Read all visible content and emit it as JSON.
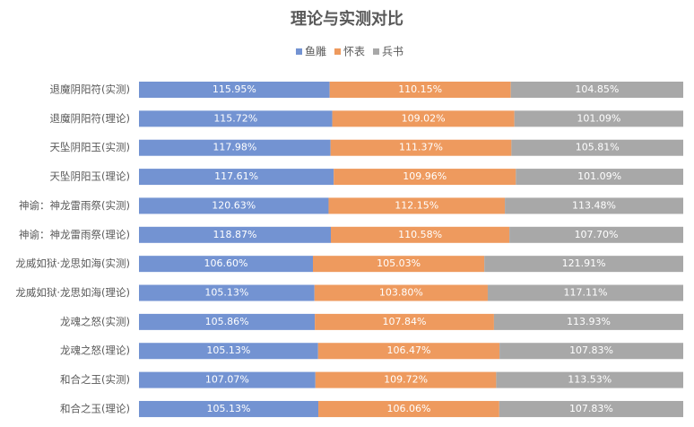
{
  "chart_data": {
    "type": "stacked_bar_100_horizontal",
    "title": "理论与实测对比",
    "categories": [
      "退魔阴阳符(实测)",
      "退魔阴阳符(理论)",
      "天坠阴阳玉(实测)",
      "天坠阴阳玉(理论)",
      "神谕：神龙雷雨祭(实测)",
      "神谕：神龙雷雨祭(理论)",
      "龙威如狱·龙思如海(实测)",
      "龙威如狱·龙思如海(理论)",
      "龙魂之怒(实测)",
      "龙魂之怒(理论)",
      "和合之玉(实测)",
      "和合之玉(理论)"
    ],
    "series": [
      {
        "name": "鱼雕",
        "color": "#7393d2",
        "values": [
          115.95,
          115.72,
          117.98,
          117.61,
          120.63,
          118.87,
          106.6,
          105.13,
          105.86,
          105.13,
          107.07,
          105.13
        ],
        "value_labels": [
          "115.95%",
          "115.72%",
          "117.98%",
          "117.61%",
          "120.63%",
          "118.87%",
          "106.60%",
          "105.13%",
          "105.86%",
          "105.13%",
          "107.07%",
          "105.13%"
        ]
      },
      {
        "name": "怀表",
        "color": "#ee9a5e",
        "values": [
          110.15,
          109.02,
          111.37,
          109.96,
          112.15,
          110.58,
          105.03,
          103.8,
          107.84,
          106.47,
          109.72,
          106.06
        ],
        "value_labels": [
          "110.15%",
          "109.02%",
          "111.37%",
          "109.96%",
          "112.15%",
          "110.58%",
          "105.03%",
          "103.80%",
          "107.84%",
          "106.47%",
          "109.72%",
          "106.06%"
        ]
      },
      {
        "name": "兵书",
        "color": "#a8a8a8",
        "values": [
          104.85,
          101.09,
          105.81,
          101.09,
          113.48,
          107.7,
          121.91,
          117.11,
          113.93,
          107.83,
          113.53,
          107.83
        ],
        "value_labels": [
          "104.85%",
          "101.09%",
          "105.81%",
          "101.09%",
          "113.48%",
          "107.70%",
          "121.91%",
          "117.11%",
          "113.93%",
          "107.83%",
          "113.53%",
          "107.83%"
        ]
      }
    ],
    "legend": "top"
  }
}
